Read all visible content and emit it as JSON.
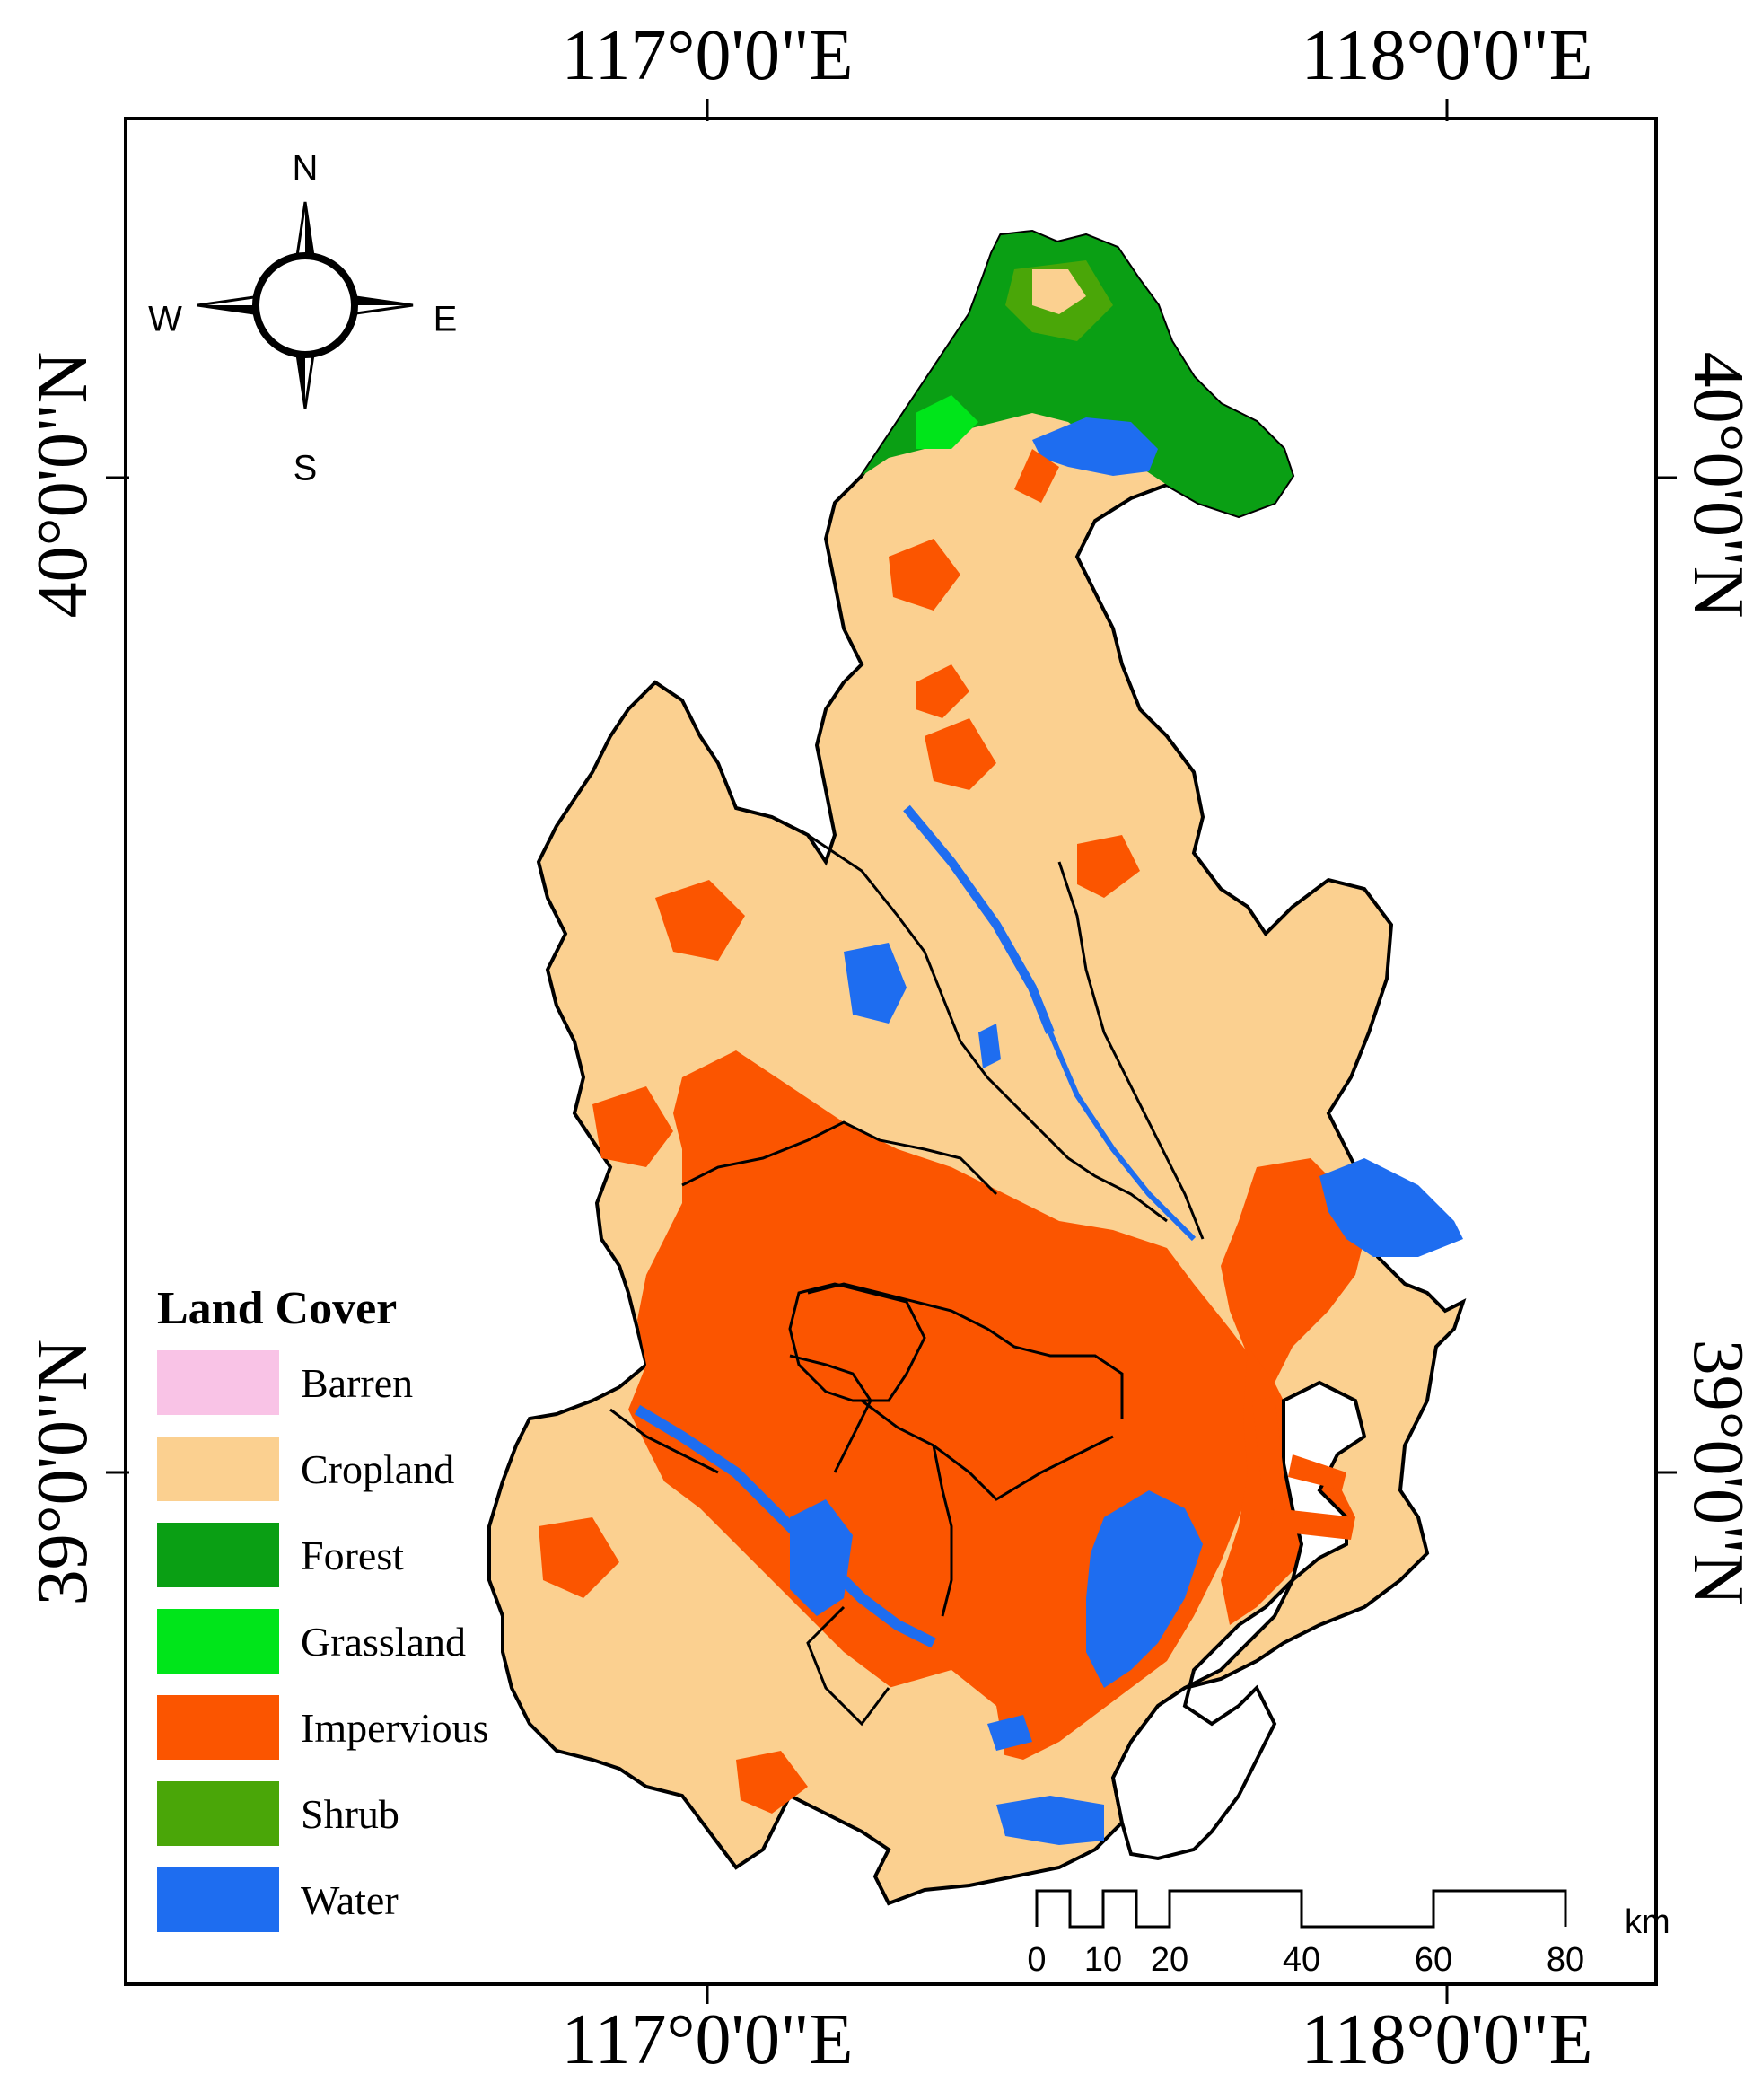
{
  "map": {
    "lon_labels": [
      "117°0'0\"E",
      "118°0'0\"E"
    ],
    "lat_labels": [
      "40°0'0\"N",
      "39°0'0\"N"
    ]
  },
  "compass": {
    "n": "N",
    "s": "S",
    "e": "E",
    "w": "W"
  },
  "legend": {
    "title": "Land Cover",
    "items": [
      {
        "label": "Barren",
        "color": "#f9c3e6"
      },
      {
        "label": "Cropland",
        "color": "#fbd090"
      },
      {
        "label": "Forest",
        "color": "#0a9f14"
      },
      {
        "label": "Grassland",
        "color": "#00e51a"
      },
      {
        "label": "Impervious",
        "color": "#fb5500"
      },
      {
        "label": "Shrub",
        "color": "#4aa608"
      },
      {
        "label": "Water",
        "color": "#1e6df0"
      }
    ]
  },
  "scale_bar": {
    "ticks": [
      "0",
      "10",
      "20",
      "40",
      "60",
      "80"
    ],
    "unit": "km"
  }
}
